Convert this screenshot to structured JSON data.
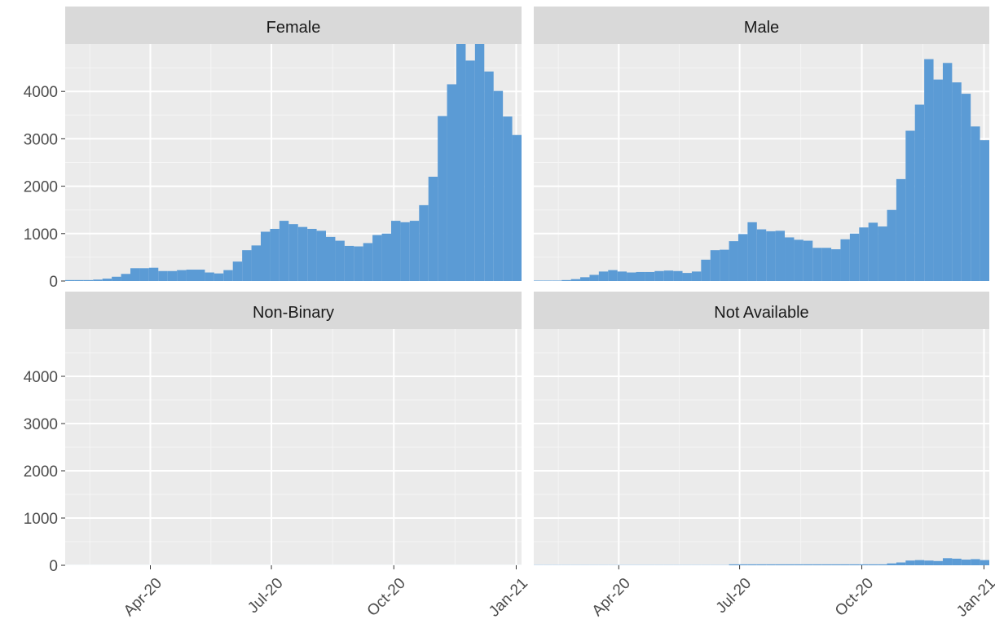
{
  "chart_data": [
    {
      "type": "histogram",
      "title": "Female",
      "color": "#5b9bd5",
      "bins": [
        27,
        34,
        41,
        48,
        55,
        62,
        69,
        76,
        83,
        90,
        97,
        104,
        111,
        118,
        125,
        132,
        139,
        146,
        153,
        160,
        167,
        174,
        181,
        188,
        195,
        202,
        209,
        216,
        223,
        230,
        237,
        244,
        251,
        258,
        265,
        272,
        279,
        286,
        293,
        300,
        307,
        314,
        321,
        328,
        335,
        342,
        349,
        356,
        363,
        370
      ],
      "values": [
        20,
        20,
        20,
        30,
        50,
        90,
        150,
        270,
        270,
        280,
        210,
        210,
        230,
        240,
        240,
        180,
        160,
        230,
        410,
        650,
        750,
        1040,
        1100,
        1270,
        1200,
        1140,
        1100,
        1060,
        930,
        850,
        740,
        730,
        800,
        970,
        1000,
        1270,
        1240,
        1270,
        1600,
        2200,
        3480,
        4150,
        5100,
        4650,
        5100,
        4420,
        4010,
        3470,
        3080
      ],
      "xlim": [
        27,
        370
      ],
      "ylim": [
        0,
        5000
      ],
      "xticks": [
        {
          "value": 91,
          "label": "Apr-20"
        },
        {
          "value": 182,
          "label": "Jul-20"
        },
        {
          "value": 274,
          "label": "Oct-20"
        },
        {
          "value": 366,
          "label": "Jan-21"
        }
      ],
      "yticks": [
        0,
        1000,
        2000,
        3000,
        4000
      ]
    },
    {
      "type": "histogram",
      "title": "Male",
      "color": "#5b9bd5",
      "bins": [
        27,
        34,
        41,
        48,
        55,
        62,
        69,
        76,
        83,
        90,
        97,
        104,
        111,
        118,
        125,
        132,
        139,
        146,
        153,
        160,
        167,
        174,
        181,
        188,
        195,
        202,
        209,
        216,
        223,
        230,
        237,
        244,
        251,
        258,
        265,
        272,
        279,
        286,
        293,
        300,
        307,
        314,
        321,
        328,
        335,
        342,
        349,
        356,
        363,
        370
      ],
      "values": [
        10,
        10,
        10,
        20,
        40,
        80,
        130,
        200,
        230,
        200,
        180,
        190,
        190,
        210,
        220,
        210,
        170,
        200,
        450,
        650,
        660,
        840,
        990,
        1240,
        1090,
        1050,
        1060,
        920,
        870,
        850,
        700,
        700,
        670,
        880,
        1000,
        1130,
        1230,
        1150,
        1500,
        2150,
        3170,
        3720,
        4680,
        4250,
        4600,
        4190,
        3950,
        3260,
        2970
      ],
      "xlim": [
        27,
        370
      ],
      "ylim": [
        0,
        5000
      ],
      "xticks": [
        {
          "value": 91,
          "label": "Apr-20"
        },
        {
          "value": 182,
          "label": "Jul-20"
        },
        {
          "value": 274,
          "label": "Oct-20"
        },
        {
          "value": 366,
          "label": "Jan-21"
        }
      ],
      "yticks": [
        0,
        1000,
        2000,
        3000,
        4000
      ]
    },
    {
      "type": "histogram",
      "title": "Non-Binary",
      "color": "#5b9bd5",
      "bins": [
        27,
        34,
        41,
        48,
        55,
        62,
        69,
        76,
        83,
        90,
        97,
        104,
        111,
        118,
        125,
        132,
        139,
        146,
        153,
        160,
        167,
        174,
        181,
        188,
        195,
        202,
        209,
        216,
        223,
        230,
        237,
        244,
        251,
        258,
        265,
        272,
        279,
        286,
        293,
        300,
        307,
        314,
        321,
        328,
        335,
        342,
        349,
        356,
        363,
        370
      ],
      "values": [
        1,
        1,
        1,
        1,
        1,
        1,
        1,
        1,
        1,
        1,
        1,
        1,
        1,
        1,
        1,
        1,
        1,
        1,
        1,
        1,
        1,
        1,
        1,
        1,
        1,
        1,
        1,
        1,
        1,
        1,
        1,
        1,
        1,
        1,
        1,
        1,
        1,
        1,
        1,
        1,
        1,
        1,
        1,
        1,
        1,
        1,
        1,
        1,
        1
      ],
      "xlim": [
        27,
        370
      ],
      "ylim": [
        0,
        5000
      ],
      "xticks": [
        {
          "value": 91,
          "label": "Apr-20"
        },
        {
          "value": 182,
          "label": "Jul-20"
        },
        {
          "value": 274,
          "label": "Oct-20"
        },
        {
          "value": 366,
          "label": "Jan-21"
        }
      ],
      "yticks": [
        0,
        1000,
        2000,
        3000,
        4000
      ]
    },
    {
      "type": "histogram",
      "title": "Not Available",
      "color": "#5b9bd5",
      "bins": [
        27,
        34,
        41,
        48,
        55,
        62,
        69,
        76,
        83,
        90,
        97,
        104,
        111,
        118,
        125,
        132,
        139,
        146,
        153,
        160,
        167,
        174,
        181,
        188,
        195,
        202,
        209,
        216,
        223,
        230,
        237,
        244,
        251,
        258,
        265,
        272,
        279,
        286,
        293,
        300,
        307,
        314,
        321,
        328,
        335,
        342,
        349,
        356,
        363,
        370
      ],
      "values": [
        5,
        5,
        5,
        5,
        5,
        5,
        5,
        5,
        5,
        5,
        5,
        5,
        5,
        5,
        5,
        5,
        5,
        5,
        5,
        5,
        5,
        20,
        20,
        20,
        20,
        20,
        20,
        20,
        20,
        20,
        20,
        20,
        20,
        20,
        20,
        20,
        20,
        20,
        40,
        60,
        100,
        110,
        100,
        90,
        150,
        140,
        120,
        130,
        110
      ],
      "xlim": [
        27,
        370
      ],
      "ylim": [
        0,
        5000
      ],
      "xticks": [
        {
          "value": 91,
          "label": "Apr-20"
        },
        {
          "value": 182,
          "label": "Jul-20"
        },
        {
          "value": 274,
          "label": "Oct-20"
        },
        {
          "value": 366,
          "label": "Jan-21"
        }
      ],
      "yticks": [
        0,
        1000,
        2000,
        3000,
        4000
      ]
    }
  ]
}
